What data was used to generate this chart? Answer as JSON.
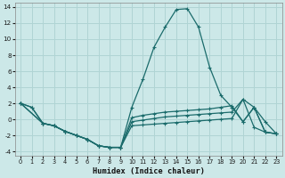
{
  "xlabel": "Humidex (Indice chaleur)",
  "bg_color": "#cce8e8",
  "grid_color": "#b0d4d4",
  "line_color": "#1a6b6b",
  "xlim": [
    -0.5,
    23.5
  ],
  "ylim": [
    -4.5,
    14.5
  ],
  "xticks": [
    0,
    1,
    2,
    3,
    4,
    5,
    6,
    7,
    8,
    9,
    10,
    11,
    12,
    13,
    14,
    15,
    16,
    17,
    18,
    19,
    20,
    21,
    22,
    23
  ],
  "yticks": [
    -4,
    -2,
    0,
    2,
    4,
    6,
    8,
    10,
    12,
    14
  ],
  "curve_peak_x": [
    0,
    1,
    2,
    3,
    4,
    5,
    6,
    7,
    8,
    9,
    10,
    11,
    12,
    13,
    14,
    15,
    16,
    17,
    18,
    19,
    20,
    21,
    22,
    23
  ],
  "curve_peak_y": [
    2.0,
    1.5,
    -0.5,
    -0.8,
    -1.5,
    -2.0,
    -2.5,
    -3.3,
    -3.5,
    -3.5,
    1.5,
    5.0,
    9.0,
    11.5,
    13.7,
    13.8,
    11.5,
    6.5,
    3.0,
    1.5,
    -0.3,
    1.5,
    -1.6,
    -1.8
  ],
  "curve_flat1_x": [
    0,
    1,
    2,
    3,
    4,
    5,
    6,
    7,
    8,
    9,
    10,
    11,
    12,
    13,
    14,
    15,
    16,
    17,
    18,
    19,
    20,
    21,
    22,
    23
  ],
  "curve_flat1_y": [
    2.0,
    1.5,
    -0.5,
    -0.8,
    -1.5,
    -2.0,
    -2.5,
    -3.3,
    -3.5,
    -3.5,
    0.2,
    0.5,
    0.7,
    0.9,
    1.0,
    1.1,
    1.2,
    1.3,
    1.5,
    1.7,
    -0.3,
    1.5,
    -1.6,
    -1.8
  ],
  "curve_flat2_x": [
    0,
    2,
    3,
    4,
    5,
    6,
    7,
    8,
    9,
    10,
    11,
    12,
    13,
    14,
    15,
    16,
    17,
    18,
    19,
    20,
    21,
    22,
    23
  ],
  "curve_flat2_y": [
    2.0,
    -0.5,
    -0.8,
    -1.5,
    -2.0,
    -2.5,
    -3.3,
    -3.5,
    -3.5,
    -0.3,
    -0.1,
    0.1,
    0.3,
    0.4,
    0.5,
    0.6,
    0.7,
    0.8,
    0.9,
    2.5,
    1.5,
    -0.3,
    -1.8
  ],
  "curve_low_x": [
    0,
    2,
    3,
    4,
    5,
    6,
    7,
    8,
    9,
    10,
    11,
    12,
    13,
    14,
    15,
    16,
    17,
    18,
    19,
    20,
    21,
    22,
    23
  ],
  "curve_low_y": [
    2.0,
    -0.5,
    -0.8,
    -1.5,
    -2.0,
    -2.5,
    -3.3,
    -3.5,
    -3.5,
    -0.8,
    -0.7,
    -0.6,
    -0.5,
    -0.4,
    -0.3,
    -0.2,
    -0.1,
    0.0,
    0.1,
    2.5,
    -1.0,
    -1.6,
    -1.8
  ]
}
